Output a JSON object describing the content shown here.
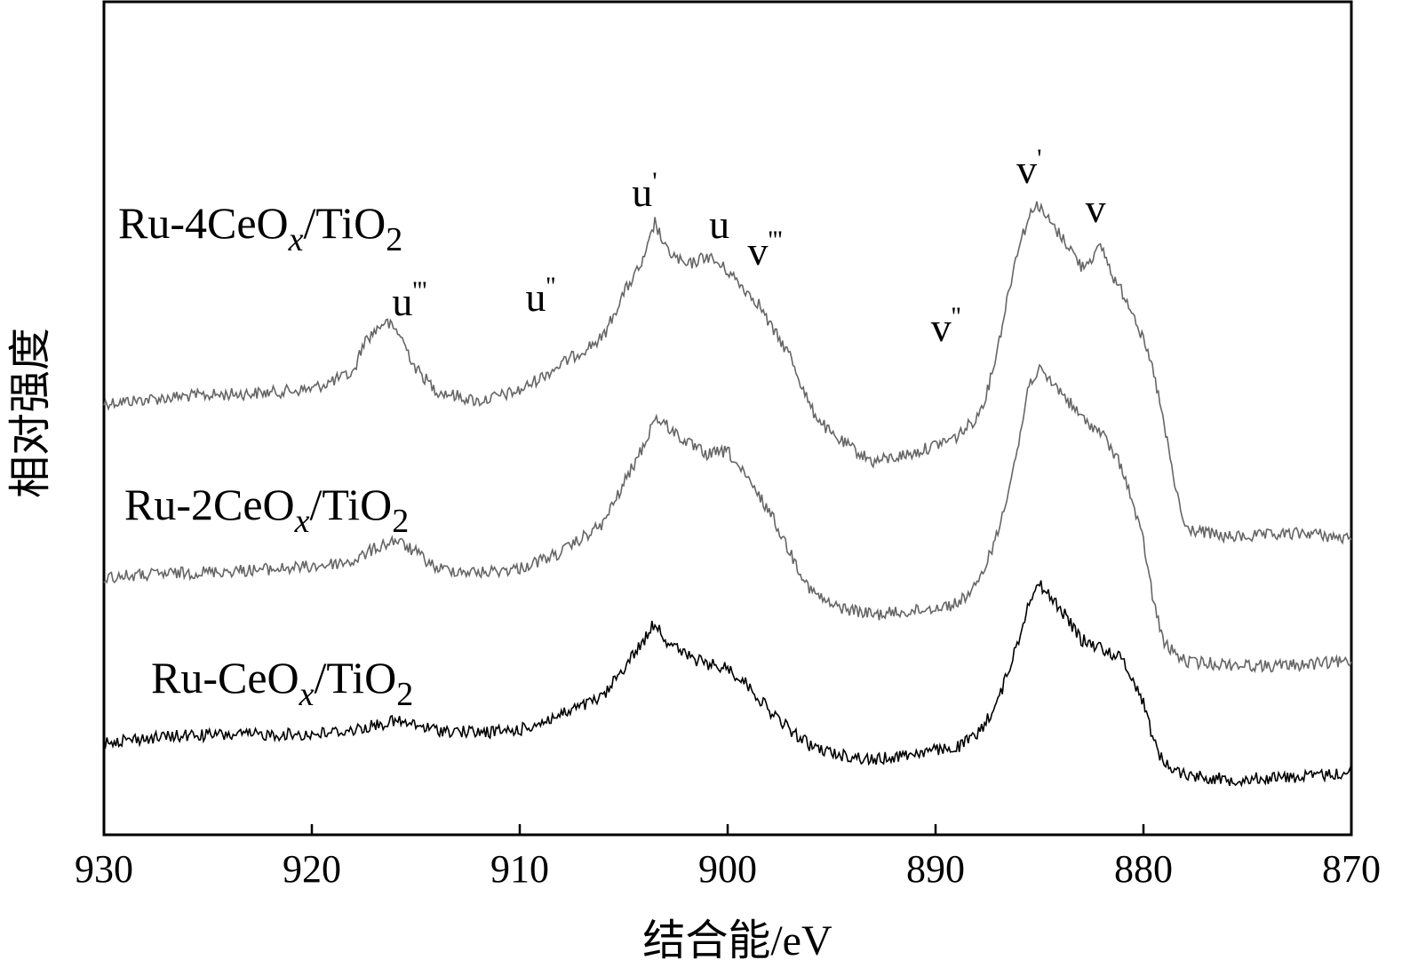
{
  "chart_data": {
    "type": "line",
    "xlabel": "结合能/eV",
    "ylabel": "相对强度",
    "xlim": [
      930,
      870
    ],
    "x_reversed": true,
    "xticks": [
      "930",
      "920",
      "910",
      "900",
      "890",
      "880",
      "870"
    ],
    "grid": false,
    "y_ticks_shown": false,
    "series": [
      {
        "name": "Ru-4CeOx/TiO2",
        "label": {
          "main": "Ru-4CeO",
          "sub_x": "x",
          "mid": "/TiO",
          "sub_2": "2"
        },
        "color": "#666666",
        "points": [
          [
            930,
            454
          ],
          [
            926,
            446
          ],
          [
            922,
            442
          ],
          [
            920,
            438
          ],
          [
            918,
            420
          ],
          [
            917.5,
            385
          ],
          [
            916.5,
            362
          ],
          [
            915.8,
            375
          ],
          [
            915,
            415
          ],
          [
            914,
            440
          ],
          [
            912,
            452
          ],
          [
            910,
            440
          ],
          [
            908,
            410
          ],
          [
            906,
            380
          ],
          [
            905,
            330
          ],
          [
            904,
            292
          ],
          [
            903.5,
            250
          ],
          [
            903,
            280
          ],
          [
            902,
            300
          ],
          [
            901,
            288
          ],
          [
            900,
            305
          ],
          [
            899,
            330
          ],
          [
            898.5,
            342
          ],
          [
            898,
            365
          ],
          [
            897,
            400
          ],
          [
            896,
            460
          ],
          [
            895,
            490
          ],
          [
            893,
            520
          ],
          [
            891,
            510
          ],
          [
            889,
            492
          ],
          [
            888,
            470
          ],
          [
            887.5,
            440
          ],
          [
            887,
            390
          ],
          [
            886.5,
            330
          ],
          [
            886,
            275
          ],
          [
            885.2,
            228
          ],
          [
            884.5,
            250
          ],
          [
            883.5,
            280
          ],
          [
            883,
            300
          ],
          [
            882.5,
            290
          ],
          [
            882,
            278
          ],
          [
            881.5,
            310
          ],
          [
            880.5,
            350
          ],
          [
            879.5,
            420
          ],
          [
            879,
            480
          ],
          [
            878.5,
            545
          ],
          [
            878,
            595
          ],
          [
            876,
            605
          ],
          [
            874,
            603
          ],
          [
            872,
            600
          ],
          [
            870,
            608
          ]
        ]
      },
      {
        "name": "Ru-2CeOx/TiO2",
        "label": {
          "main": "Ru-2CeO",
          "sub_x": "x",
          "mid": "/TiO",
          "sub_2": "2"
        },
        "color": "#666666",
        "points": [
          [
            930,
            650
          ],
          [
            926,
            645
          ],
          [
            922,
            641
          ],
          [
            920,
            638
          ],
          [
            918,
            632
          ],
          [
            917,
            618
          ],
          [
            916,
            608
          ],
          [
            915,
            622
          ],
          [
            914,
            640
          ],
          [
            912,
            645
          ],
          [
            910,
            640
          ],
          [
            908,
            622
          ],
          [
            906,
            590
          ],
          [
            905,
            545
          ],
          [
            904,
            500
          ],
          [
            903.5,
            470
          ],
          [
            903,
            478
          ],
          [
            902,
            498
          ],
          [
            901,
            512
          ],
          [
            900,
            508
          ],
          [
            899,
            542
          ],
          [
            898,
            575
          ],
          [
            897,
            622
          ],
          [
            896,
            665
          ],
          [
            895,
            682
          ],
          [
            893,
            692
          ],
          [
            891,
            688
          ],
          [
            889,
            680
          ],
          [
            888,
            660
          ],
          [
            887,
            600
          ],
          [
            886,
            500
          ],
          [
            885.5,
            430
          ],
          [
            885,
            418
          ],
          [
            884,
            440
          ],
          [
            883,
            470
          ],
          [
            882,
            488
          ],
          [
            881,
            528
          ],
          [
            880,
            610
          ],
          [
            879.5,
            680
          ],
          [
            879,
            725
          ],
          [
            878,
            745
          ],
          [
            876,
            748
          ],
          [
            874,
            750
          ],
          [
            872,
            748
          ],
          [
            870,
            745
          ]
        ]
      },
      {
        "name": "Ru-CeOx/TiO2",
        "label": {
          "main": "Ru-CeO",
          "sub_x": "x",
          "mid": "/TiO",
          "sub_2": "2"
        },
        "color": "#000000",
        "points": [
          [
            930,
            835
          ],
          [
            926,
            828
          ],
          [
            922,
            827
          ],
          [
            920,
            827
          ],
          [
            918,
            822
          ],
          [
            916,
            812
          ],
          [
            914,
            822
          ],
          [
            912,
            825
          ],
          [
            910,
            822
          ],
          [
            908,
            805
          ],
          [
            906,
            785
          ],
          [
            905,
            752
          ],
          [
            904,
            720
          ],
          [
            903.5,
            700
          ],
          [
            903,
            720
          ],
          [
            902,
            738
          ],
          [
            901,
            748
          ],
          [
            900,
            752
          ],
          [
            899,
            772
          ],
          [
            898,
            800
          ],
          [
            897,
            822
          ],
          [
            896,
            840
          ],
          [
            895,
            848
          ],
          [
            893,
            856
          ],
          [
            891,
            848
          ],
          [
            889,
            842
          ],
          [
            888,
            828
          ],
          [
            887,
            790
          ],
          [
            886,
            720
          ],
          [
            885.5,
            675
          ],
          [
            885,
            658
          ],
          [
            884,
            685
          ],
          [
            883,
            720
          ],
          [
            882,
            730
          ],
          [
            881,
            742
          ],
          [
            880,
            790
          ],
          [
            879.5,
            835
          ],
          [
            879,
            860
          ],
          [
            878,
            872
          ],
          [
            876,
            878
          ],
          [
            874,
            876
          ],
          [
            872,
            874
          ],
          [
            870,
            870
          ]
        ]
      }
    ],
    "peak_labels": [
      {
        "base": "u",
        "primes": "'''",
        "x": 915.3,
        "y": 355
      },
      {
        "base": "u",
        "primes": "''",
        "x": 909,
        "y": 350
      },
      {
        "base": "u",
        "primes": "'",
        "x": 904,
        "y": 232
      },
      {
        "base": "u",
        "primes": "",
        "x": 900.4,
        "y": 268
      },
      {
        "base": "v",
        "primes": "'''",
        "x": 898.2,
        "y": 298
      },
      {
        "base": "v",
        "primes": "''",
        "x": 889.5,
        "y": 384
      },
      {
        "base": "v",
        "primes": "'",
        "x": 885.5,
        "y": 206
      },
      {
        "base": "v",
        "primes": "",
        "x": 882.3,
        "y": 250
      }
    ]
  }
}
